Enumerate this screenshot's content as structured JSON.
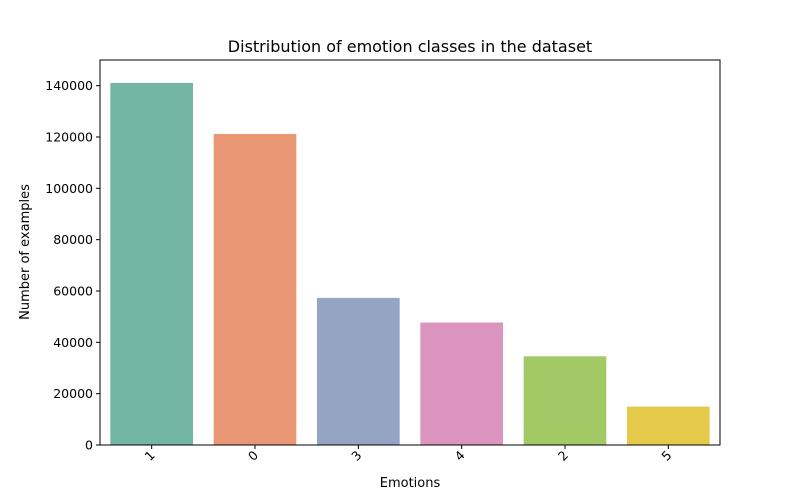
{
  "chart_data": {
    "type": "bar",
    "title": "Distribution of emotion classes in the dataset",
    "xlabel": "Emotions",
    "ylabel": "Number of examples",
    "categories": [
      "1",
      "0",
      "3",
      "4",
      "2",
      "5"
    ],
    "values": [
      141067,
      121187,
      57317,
      47712,
      34554,
      14972
    ],
    "colors": [
      "#73b6a1",
      "#e99675",
      "#95a4c3",
      "#db95bf",
      "#a3c866",
      "#e5c94a"
    ],
    "yticks": [
      0,
      20000,
      40000,
      60000,
      80000,
      100000,
      120000,
      140000
    ],
    "ylim": [
      0,
      150000
    ],
    "grid": false,
    "xtick_rotation": 45
  }
}
